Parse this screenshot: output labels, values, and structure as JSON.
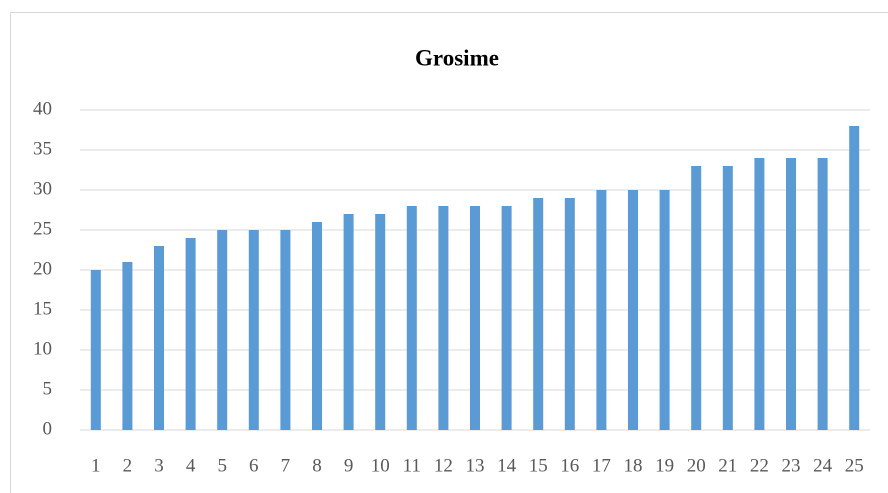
{
  "chart_data": {
    "type": "bar",
    "title": "Grosime",
    "categories": [
      "1",
      "2",
      "3",
      "4",
      "5",
      "6",
      "7",
      "8",
      "9",
      "10",
      "11",
      "12",
      "13",
      "14",
      "15",
      "16",
      "17",
      "18",
      "19",
      "20",
      "21",
      "22",
      "23",
      "24",
      "25"
    ],
    "values": [
      20,
      21,
      23,
      24,
      25,
      25,
      25,
      26,
      27,
      27,
      28,
      28,
      28,
      28,
      29,
      29,
      30,
      30,
      30,
      33,
      33,
      34,
      34,
      34,
      38
    ],
    "color": "#5b9bd5",
    "ylim": [
      0,
      40
    ],
    "yticks": [
      0,
      5,
      10,
      15,
      20,
      25,
      30,
      35,
      40
    ],
    "grid": true
  }
}
